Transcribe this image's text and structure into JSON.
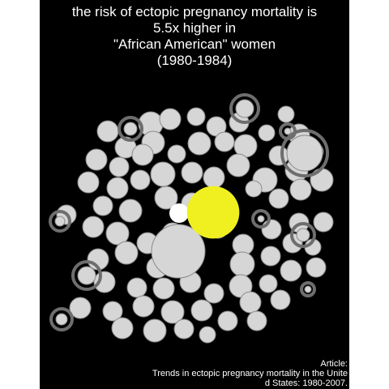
{
  "title_lines": [
    "the risk of ectopic pregnancy mortality is",
    "5.5x higher in",
    "\"African American\" women",
    "(1980-1984)"
  ],
  "caption_lines": [
    "Article:",
    "Trends in ectopic pregnancy mortality in the Unite",
    "d States: 1980-2007."
  ],
  "colors": {
    "background": "#000000",
    "bubble": "#d6d6d6",
    "bubble_stroke": "#8a8a8a",
    "ring": "#6e6e6e",
    "highlight": "#f0f020",
    "reference": "#ffffff"
  },
  "chart_data": {
    "type": "bubble",
    "title": "the risk of ectopic pregnancy mortality is 5.5x higher in \"African American\" women (1980-1984)",
    "comparison": {
      "ratio": 5.5,
      "period": "1980-1984",
      "highlighted_group": "\"African American\" women"
    },
    "legend": "none",
    "grid": false
  }
}
